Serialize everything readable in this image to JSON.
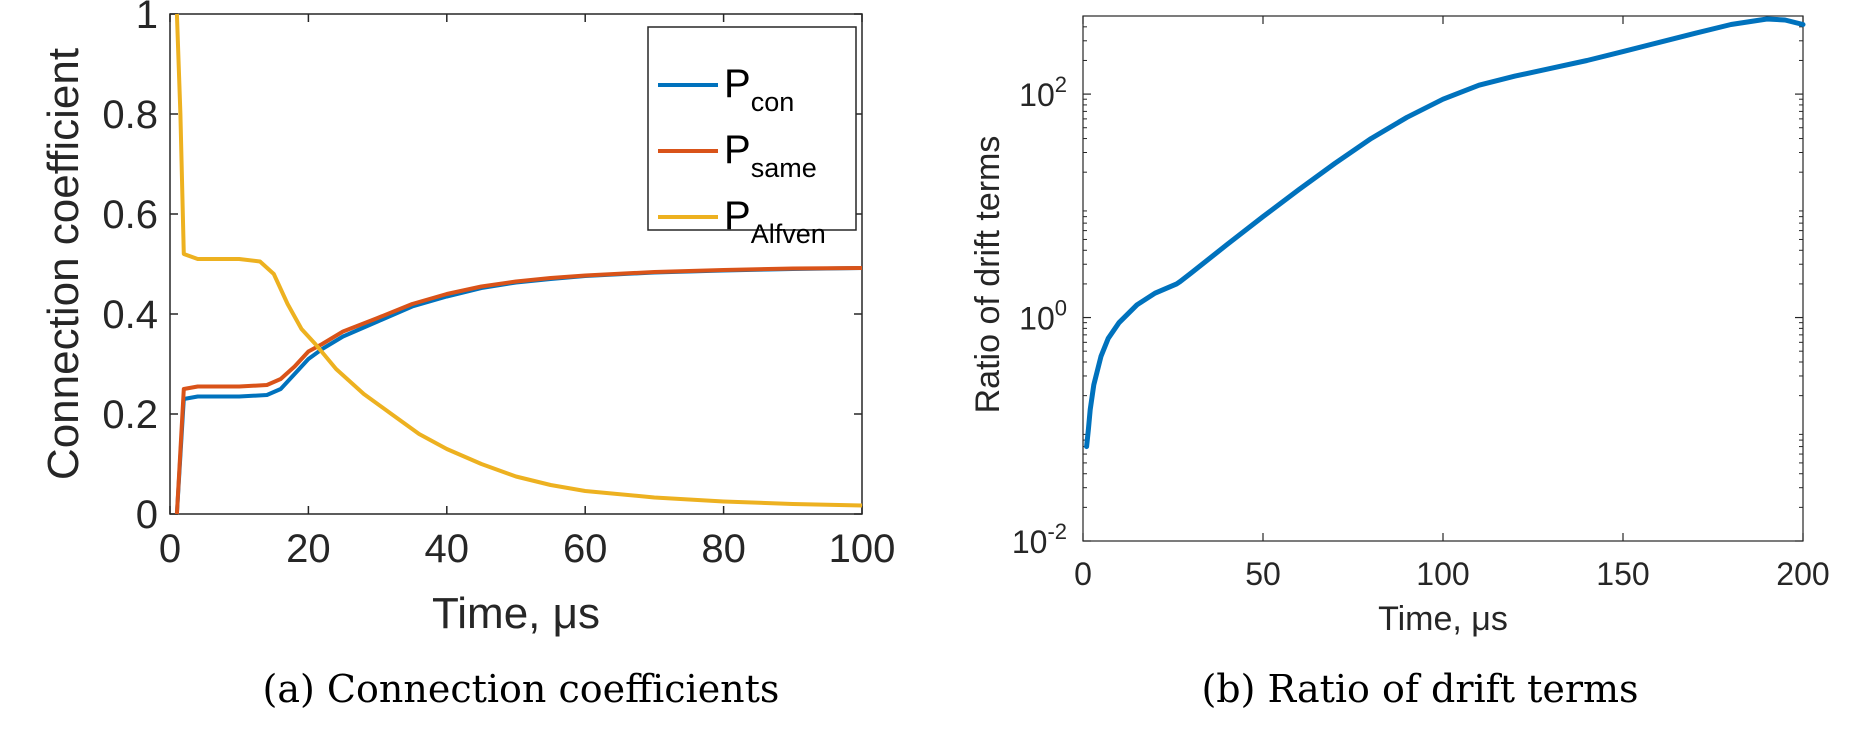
{
  "colors": {
    "blue": "#0072BD",
    "orange": "#D95319",
    "yellow": "#EDB120",
    "axis": "#262626"
  },
  "chart_data": [
    {
      "type": "line",
      "caption": "(a) Connection coefficients",
      "xlabel": "Time, μs",
      "ylabel": "Connection coefficient",
      "xlim": [
        0,
        100
      ],
      "ylim": [
        0,
        1
      ],
      "xticks": [
        "0",
        "20",
        "40",
        "60",
        "80",
        "100"
      ],
      "yticks": [
        "0",
        "0.2",
        "0.4",
        "0.6",
        "0.8",
        "1"
      ],
      "legend": {
        "position": "top-right"
      },
      "series": [
        {
          "name_main": "P",
          "name_sub": "con",
          "color": "#0072BD",
          "points": [
            [
              1,
              0
            ],
            [
              2,
              0.23
            ],
            [
              4,
              0.235
            ],
            [
              10,
              0.235
            ],
            [
              14,
              0.238
            ],
            [
              16,
              0.25
            ],
            [
              18,
              0.28
            ],
            [
              20,
              0.31
            ],
            [
              22,
              0.33
            ],
            [
              25,
              0.355
            ],
            [
              30,
              0.385
            ],
            [
              35,
              0.415
            ],
            [
              40,
              0.435
            ],
            [
              45,
              0.452
            ],
            [
              50,
              0.463
            ],
            [
              55,
              0.47
            ],
            [
              60,
              0.476
            ],
            [
              70,
              0.483
            ],
            [
              80,
              0.487
            ],
            [
              90,
              0.49
            ],
            [
              100,
              0.492
            ]
          ]
        },
        {
          "name_main": "P",
          "name_sub": "same",
          "color": "#D95319",
          "points": [
            [
              1,
              0
            ],
            [
              2,
              0.25
            ],
            [
              4,
              0.255
            ],
            [
              10,
              0.255
            ],
            [
              14,
              0.258
            ],
            [
              16,
              0.27
            ],
            [
              18,
              0.295
            ],
            [
              20,
              0.325
            ],
            [
              22,
              0.34
            ],
            [
              25,
              0.365
            ],
            [
              30,
              0.392
            ],
            [
              35,
              0.42
            ],
            [
              40,
              0.44
            ],
            [
              45,
              0.455
            ],
            [
              50,
              0.465
            ],
            [
              55,
              0.472
            ],
            [
              60,
              0.477
            ],
            [
              70,
              0.484
            ],
            [
              80,
              0.488
            ],
            [
              90,
              0.491
            ],
            [
              100,
              0.492
            ]
          ]
        },
        {
          "name_main": "P",
          "name_sub": "Alfven",
          "color": "#EDB120",
          "points": [
            [
              1,
              1
            ],
            [
              1.5,
              0.8
            ],
            [
              2,
              0.52
            ],
            [
              4,
              0.51
            ],
            [
              10,
              0.51
            ],
            [
              13,
              0.505
            ],
            [
              15,
              0.48
            ],
            [
              17,
              0.42
            ],
            [
              19,
              0.37
            ],
            [
              21,
              0.34
            ],
            [
              24,
              0.29
            ],
            [
              28,
              0.24
            ],
            [
              32,
              0.2
            ],
            [
              36,
              0.16
            ],
            [
              40,
              0.13
            ],
            [
              45,
              0.1
            ],
            [
              50,
              0.075
            ],
            [
              55,
              0.058
            ],
            [
              60,
              0.046
            ],
            [
              70,
              0.033
            ],
            [
              80,
              0.025
            ],
            [
              90,
              0.02
            ],
            [
              100,
              0.017
            ]
          ]
        }
      ]
    },
    {
      "type": "line",
      "caption": "(b) Ratio of drift terms",
      "xlabel": "Time, μs",
      "ylabel": "Ratio of drift terms",
      "yscale": "log",
      "xlim": [
        0,
        200
      ],
      "ylim": [
        0.01,
        500
      ],
      "xticks": [
        "0",
        "50",
        "100",
        "150",
        "200"
      ],
      "yticks": [
        {
          "base": "10",
          "exp": "-2"
        },
        {
          "base": "10",
          "exp": "0"
        },
        {
          "base": "10",
          "exp": "2"
        }
      ],
      "series": [
        {
          "color": "#0072BD",
          "points": [
            [
              1,
              0.07
            ],
            [
              1.5,
              0.1
            ],
            [
              2,
              0.15
            ],
            [
              3,
              0.25
            ],
            [
              5,
              0.45
            ],
            [
              7,
              0.65
            ],
            [
              10,
              0.9
            ],
            [
              15,
              1.3
            ],
            [
              20,
              1.65
            ],
            [
              26,
              2.0
            ],
            [
              27,
              2.1
            ],
            [
              30,
              2.5
            ],
            [
              40,
              4.5
            ],
            [
              50,
              8
            ],
            [
              60,
              14
            ],
            [
              70,
              24
            ],
            [
              80,
              40
            ],
            [
              90,
              62
            ],
            [
              100,
              90
            ],
            [
              110,
              120
            ],
            [
              120,
              145
            ],
            [
              130,
              170
            ],
            [
              140,
              200
            ],
            [
              150,
              240
            ],
            [
              160,
              290
            ],
            [
              170,
              350
            ],
            [
              180,
              420
            ],
            [
              190,
              470
            ],
            [
              195,
              460
            ],
            [
              200,
              420
            ]
          ]
        }
      ]
    }
  ]
}
